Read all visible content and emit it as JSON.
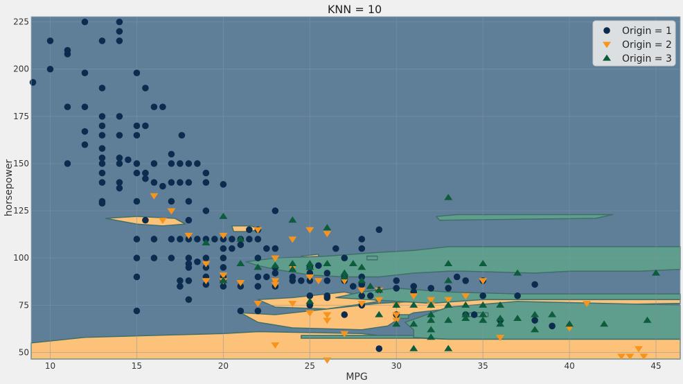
{
  "chart_data": {
    "type": "scatter",
    "title": "KNN = 10",
    "xlabel": "MPG",
    "ylabel": "horsepower",
    "xlim": [
      8.9,
      46.4
    ],
    "ylim": [
      46.5,
      227.8
    ],
    "xticks": [
      10,
      15,
      20,
      25,
      30,
      35,
      40,
      45
    ],
    "yticks": [
      50,
      75,
      100,
      125,
      150,
      175,
      200,
      225
    ],
    "grid": true,
    "legend_position": "top-right",
    "background_colors": {
      "figure": "#f0f0f0",
      "region_1": "#5f7f99",
      "region_2": "#fdc27a",
      "region_3": "#5f9e8c",
      "region_edge": "#3f6f68",
      "grid": "#7f94a7"
    },
    "series": [
      {
        "name": "Origin = 1",
        "marker": "circle",
        "color": "#0b2c4e",
        "points": [
          [
            9,
            193
          ],
          [
            10,
            215
          ],
          [
            10,
            200
          ],
          [
            11,
            210
          ],
          [
            11,
            208
          ],
          [
            11,
            180
          ],
          [
            11,
            150
          ],
          [
            12,
            225
          ],
          [
            12,
            198
          ],
          [
            12,
            180
          ],
          [
            12,
            167
          ],
          [
            12,
            160
          ],
          [
            13,
            215
          ],
          [
            13,
            190
          ],
          [
            13,
            175
          ],
          [
            13,
            170
          ],
          [
            13,
            165
          ],
          [
            13,
            158
          ],
          [
            13,
            153
          ],
          [
            13,
            150
          ],
          [
            13,
            145
          ],
          [
            13,
            140
          ],
          [
            13,
            130
          ],
          [
            13,
            129
          ],
          [
            14,
            225
          ],
          [
            14,
            220
          ],
          [
            14,
            215
          ],
          [
            14,
            175
          ],
          [
            14,
            165
          ],
          [
            14,
            153
          ],
          [
            14,
            150
          ],
          [
            14,
            140
          ],
          [
            14,
            137
          ],
          [
            14.5,
            152
          ],
          [
            15,
            198
          ],
          [
            15,
            170
          ],
          [
            15,
            165
          ],
          [
            15,
            150
          ],
          [
            15,
            145
          ],
          [
            15,
            130
          ],
          [
            15,
            110
          ],
          [
            15,
            100
          ],
          [
            15,
            90
          ],
          [
            15,
            72
          ],
          [
            15.5,
            190
          ],
          [
            15.5,
            170
          ],
          [
            15.5,
            145
          ],
          [
            15.5,
            142
          ],
          [
            15.5,
            120
          ],
          [
            16,
            180
          ],
          [
            16,
            150
          ],
          [
            16,
            140
          ],
          [
            16,
            110
          ],
          [
            16,
            100
          ],
          [
            16.5,
            180
          ],
          [
            16.5,
            138
          ],
          [
            17,
            155
          ],
          [
            17,
            150
          ],
          [
            17,
            140
          ],
          [
            17,
            130
          ],
          [
            17,
            110
          ],
          [
            17,
            100
          ],
          [
            17.5,
            150
          ],
          [
            17.5,
            140
          ],
          [
            17.5,
            110
          ],
          [
            17.5,
            88
          ],
          [
            17.5,
            85
          ],
          [
            17.6,
            165
          ],
          [
            18,
            150
          ],
          [
            18,
            140
          ],
          [
            18,
            130
          ],
          [
            18,
            120
          ],
          [
            18,
            110
          ],
          [
            18,
            100
          ],
          [
            18,
            97
          ],
          [
            18,
            95
          ],
          [
            18,
            88
          ],
          [
            18,
            78
          ],
          [
            18.5,
            150
          ],
          [
            18.5,
            110
          ],
          [
            18.5,
            98
          ],
          [
            19,
            145
          ],
          [
            19,
            140
          ],
          [
            19,
            125
          ],
          [
            19,
            110
          ],
          [
            19,
            100
          ],
          [
            19,
            95
          ],
          [
            19,
            90
          ],
          [
            19,
            86
          ],
          [
            19.5,
            110
          ],
          [
            20,
            139
          ],
          [
            20,
            110
          ],
          [
            20,
            105
          ],
          [
            20,
            100
          ],
          [
            20,
            95
          ],
          [
            20,
            90
          ],
          [
            20,
            88
          ],
          [
            20,
            85
          ],
          [
            20.5,
            110
          ],
          [
            20.5,
            105
          ],
          [
            21,
            110
          ],
          [
            21,
            107
          ],
          [
            21,
            85
          ],
          [
            21,
            72
          ],
          [
            21.5,
            115
          ],
          [
            21.5,
            110
          ],
          [
            22,
            115
          ],
          [
            22,
            110
          ],
          [
            22,
            100
          ],
          [
            22,
            90
          ],
          [
            22,
            85
          ],
          [
            22,
            72
          ],
          [
            22.5,
            105
          ],
          [
            22.5,
            90
          ],
          [
            23,
            125
          ],
          [
            23,
            105
          ],
          [
            23,
            95
          ],
          [
            23,
            92
          ],
          [
            23,
            85
          ],
          [
            24,
            90
          ],
          [
            24,
            88
          ],
          [
            24.5,
            88
          ],
          [
            25,
            95
          ],
          [
            25,
            92
          ],
          [
            25,
            88
          ],
          [
            25,
            80
          ],
          [
            25,
            75
          ],
          [
            25.5,
            96
          ],
          [
            26,
            92
          ],
          [
            26,
            88
          ],
          [
            26,
            80
          ],
          [
            26,
            79
          ],
          [
            26.5,
            105
          ],
          [
            27,
            100
          ],
          [
            27,
            90
          ],
          [
            27,
            88
          ],
          [
            27,
            70
          ],
          [
            27.5,
            85
          ],
          [
            28,
            110
          ],
          [
            28,
            90
          ],
          [
            28,
            86
          ],
          [
            28,
            80
          ],
          [
            28,
            75
          ],
          [
            28,
            105
          ],
          [
            28.5,
            80
          ],
          [
            29,
            115
          ],
          [
            29,
            83
          ],
          [
            29,
            52
          ],
          [
            30,
            88
          ],
          [
            30,
            84
          ],
          [
            30,
            70
          ],
          [
            31,
            85
          ],
          [
            31,
            82
          ],
          [
            32,
            84
          ],
          [
            33,
            84
          ],
          [
            33.5,
            90
          ],
          [
            34,
            88
          ],
          [
            34,
            70
          ],
          [
            34.5,
            70
          ],
          [
            35,
            88
          ],
          [
            35,
            80
          ],
          [
            36,
            67
          ],
          [
            37,
            80
          ],
          [
            38,
            86
          ],
          [
            38,
            67
          ],
          [
            39,
            64
          ]
        ]
      },
      {
        "name": "Origin = 2",
        "marker": "triangle-down",
        "color": "#f7941d",
        "points": [
          [
            16,
            133
          ],
          [
            16.5,
            120
          ],
          [
            17,
            125
          ],
          [
            18,
            112
          ],
          [
            19,
            97
          ],
          [
            19,
            88
          ],
          [
            20,
            88
          ],
          [
            20,
            91
          ],
          [
            20,
            112
          ],
          [
            21,
            87
          ],
          [
            22,
            115
          ],
          [
            22,
            76
          ],
          [
            23,
            100
          ],
          [
            23,
            88
          ],
          [
            23,
            86
          ],
          [
            23,
            54
          ],
          [
            24,
            110
          ],
          [
            24,
            95
          ],
          [
            24,
            76
          ],
          [
            25,
            115
          ],
          [
            25,
            90
          ],
          [
            25,
            71
          ],
          [
            25,
            71
          ],
          [
            25.5,
            88
          ],
          [
            26,
            113
          ],
          [
            26,
            70
          ],
          [
            26,
            67
          ],
          [
            26,
            46
          ],
          [
            27,
            88
          ],
          [
            27,
            60
          ],
          [
            28,
            83
          ],
          [
            28,
            76
          ],
          [
            29,
            83
          ],
          [
            29,
            78
          ],
          [
            30,
            75
          ],
          [
            30,
            70
          ],
          [
            30,
            67
          ],
          [
            31,
            80
          ],
          [
            32,
            78
          ],
          [
            32,
            75
          ],
          [
            33,
            78
          ],
          [
            34,
            80
          ],
          [
            35,
            88
          ],
          [
            36,
            58
          ],
          [
            40,
            63
          ],
          [
            41,
            76
          ],
          [
            43,
            48
          ],
          [
            43.5,
            48
          ],
          [
            44,
            52
          ],
          [
            44.3,
            48
          ]
        ]
      },
      {
        "name": "Origin = 3",
        "marker": "triangle-up",
        "color": "#0d5c3c",
        "points": [
          [
            19,
            108
          ],
          [
            20,
            122
          ],
          [
            20,
            88
          ],
          [
            21,
            97
          ],
          [
            21,
            110
          ],
          [
            22,
            95
          ],
          [
            23,
            96
          ],
          [
            24,
            97
          ],
          [
            24,
            94
          ],
          [
            24,
            120
          ],
          [
            25,
            97
          ],
          [
            25,
            95
          ],
          [
            25,
            77
          ],
          [
            26,
            116
          ],
          [
            26,
            97
          ],
          [
            27,
            92
          ],
          [
            27,
            90
          ],
          [
            27.5,
            97
          ],
          [
            28,
            95
          ],
          [
            28,
            88
          ],
          [
            28.5,
            85
          ],
          [
            29,
            83
          ],
          [
            29,
            70
          ],
          [
            30,
            75
          ],
          [
            30,
            65
          ],
          [
            31,
            75
          ],
          [
            31,
            65
          ],
          [
            31,
            52
          ],
          [
            32,
            75
          ],
          [
            32,
            70
          ],
          [
            32,
            67
          ],
          [
            32,
            62
          ],
          [
            32,
            58
          ],
          [
            33,
            132
          ],
          [
            33,
            97
          ],
          [
            33,
            75
          ],
          [
            33,
            67
          ],
          [
            33,
            52
          ],
          [
            33,
            88
          ],
          [
            34,
            75
          ],
          [
            34,
            70
          ],
          [
            34,
            68
          ],
          [
            35,
            97
          ],
          [
            35,
            75
          ],
          [
            35,
            70
          ],
          [
            35,
            67
          ],
          [
            36,
            75
          ],
          [
            36,
            68
          ],
          [
            36,
            65
          ],
          [
            37,
            92
          ],
          [
            37,
            68
          ],
          [
            38,
            70
          ],
          [
            38,
            62
          ],
          [
            39,
            70
          ],
          [
            40,
            65
          ],
          [
            42,
            65
          ],
          [
            44.5,
            67
          ],
          [
            45,
            92
          ]
        ]
      }
    ]
  }
}
